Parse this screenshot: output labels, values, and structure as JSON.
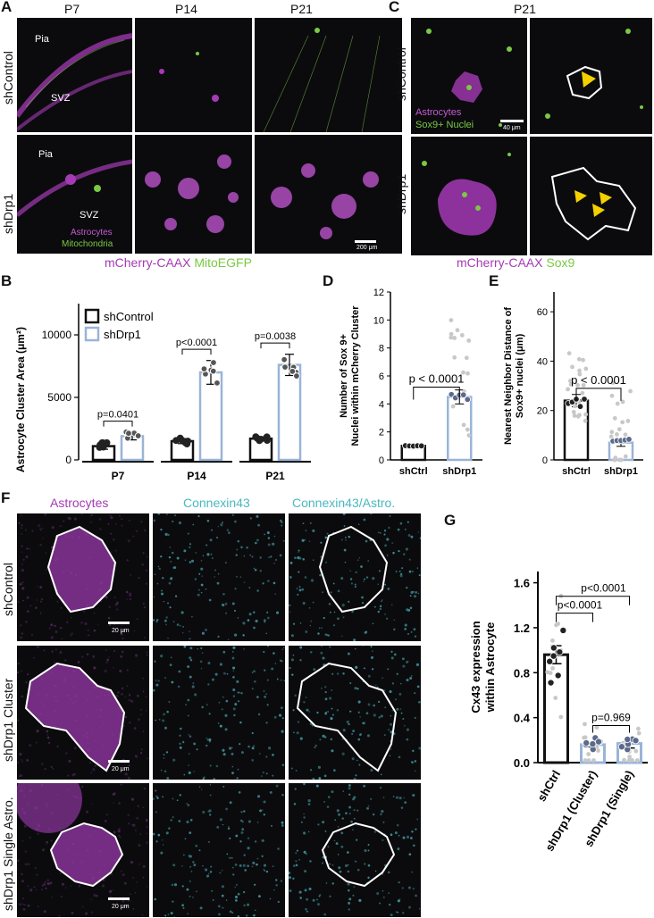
{
  "panels": {
    "A": {
      "letter": "A",
      "columns": [
        "P7",
        "P14",
        "P21"
      ],
      "rows": [
        "shControl",
        "shDrp1"
      ],
      "labels": {
        "pia": "Pia",
        "svz": "SVZ",
        "astro": "Astrocytes",
        "mito": "Mitochondria",
        "scale": "200 μm"
      },
      "caption_magenta": "mCherry-CAAX",
      "caption_green": "MitoEGFP"
    },
    "B": {
      "letter": "B"
    },
    "C": {
      "letter": "C",
      "title": "P21",
      "rows": [
        "shControl",
        "shDrp1"
      ],
      "labels": {
        "astro": "Astrocytes",
        "sox": "Sox9+ Nuclei",
        "scale": "40 μm"
      },
      "caption_magenta": "mCherry-CAAX",
      "caption_green": "Sox9"
    },
    "D": {
      "letter": "D"
    },
    "E": {
      "letter": "E"
    },
    "F": {
      "letter": "F",
      "columns": [
        "Astrocytes",
        "Connexin43",
        "Connexin43/Astro."
      ],
      "rows": [
        "shControl",
        "shDrp1 Cluster",
        "shDrp1 Single Astro."
      ],
      "scale": "20 μm"
    },
    "G": {
      "letter": "G"
    }
  },
  "colors": {
    "magenta": "#a53ab5",
    "green": "#7ac943",
    "cyan": "#4ab8c0",
    "blue_bar": "#9ab4d8",
    "black": "#111111",
    "grey_dot": "#c8c8c8",
    "yellow": "#f5d000"
  },
  "chart_data": [
    {
      "type": "bar",
      "panel": "B",
      "ylabel": "Astrocyte Cluster Area (μm²)",
      "categories": [
        "P7",
        "P14",
        "P21"
      ],
      "ylim": [
        0,
        12500
      ],
      "yticks": [
        0,
        5000,
        10000
      ],
      "legend_position": "top-left",
      "series": [
        {
          "name": "shControl",
          "values": [
            1100,
            1500,
            1700
          ],
          "errors": [
            250,
            200,
            150
          ]
        },
        {
          "name": "shDrp1",
          "values": [
            1900,
            7000,
            7600
          ],
          "errors": [
            300,
            950,
            850
          ]
        }
      ],
      "pvalues": [
        "p=0.0401",
        "p<0.0001",
        "p=0.0038"
      ]
    },
    {
      "type": "bar",
      "panel": "D",
      "ylabel": "Number of Sox 9+ Nuclei within mCherry Cluster",
      "categories": [
        "shCtrl",
        "shDrp1"
      ],
      "values": [
        1,
        4.5
      ],
      "errors": [
        0,
        0.5
      ],
      "ylim": [
        0,
        12
      ],
      "yticks": [
        0,
        2,
        4,
        6,
        8,
        10,
        12
      ],
      "pvalue": "p < 0.0001"
    },
    {
      "type": "bar",
      "panel": "E",
      "ylabel": "Nearest Neighbor Distance of Sox9+ nuclei (μm)",
      "categories": [
        "shCtrl",
        "shDrp1"
      ],
      "values": [
        24,
        7
      ],
      "errors": [
        2.5,
        1.5
      ],
      "ylim": [
        0,
        68
      ],
      "yticks": [
        0,
        20,
        40,
        60
      ],
      "pvalue": "p < 0.0001"
    },
    {
      "type": "bar",
      "panel": "G",
      "ylabel": "Cx43 expression within Astrocyte",
      "categories": [
        "shCtrl",
        "shDrp1 (Cluster)",
        "shDrp1 (Single)"
      ],
      "values": [
        0.96,
        0.16,
        0.17
      ],
      "errors": [
        0.08,
        0.02,
        0.04
      ],
      "ylim": [
        0,
        1.7
      ],
      "yticks": [
        0.0,
        0.4,
        0.8,
        1.2,
        1.6
      ],
      "pvalues": [
        "p<0.0001",
        "p<0.0001",
        "p=0.969"
      ]
    }
  ]
}
